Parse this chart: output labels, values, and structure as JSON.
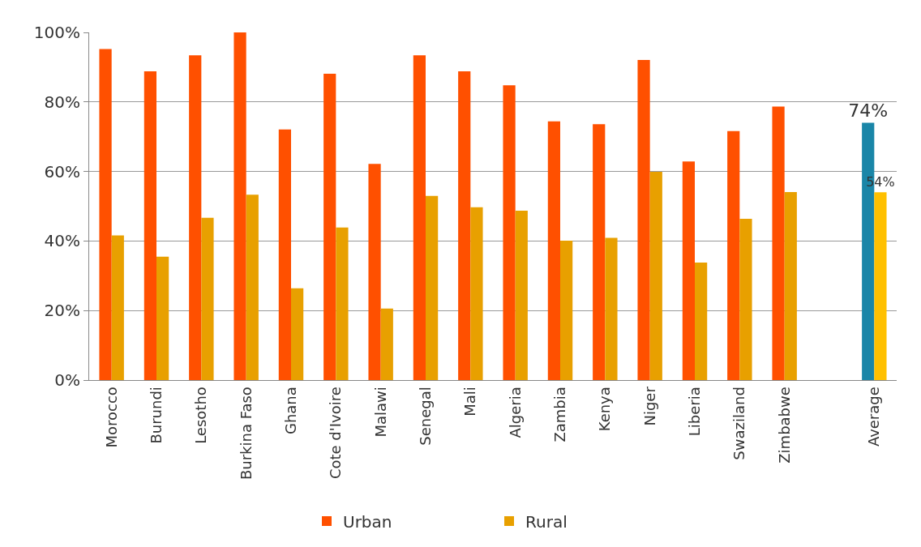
{
  "chart_data": {
    "type": "bar",
    "categories": [
      "Morocco",
      "Burundi",
      "Lesotho",
      "Burkina Faso",
      "Ghana",
      "Cote d'Ivoire",
      "Malawi",
      "Senegal",
      "Mali",
      "Algeria",
      "Zambia",
      "Kenya",
      "Niger",
      "Liberia",
      "Swaziland",
      "Zimbabwe",
      null,
      "Average"
    ],
    "series": [
      {
        "name": "Urban",
        "color": "#ff5000",
        "colors": [
          null,
          null,
          null,
          null,
          null,
          null,
          null,
          null,
          null,
          null,
          null,
          null,
          null,
          null,
          null,
          null,
          null,
          "#1a86a8"
        ],
        "values": [
          95.2,
          88.8,
          93.4,
          100,
          72.1,
          88.1,
          62.2,
          93.4,
          88.8,
          84.8,
          74.4,
          73.6,
          92.1,
          62.9,
          71.6,
          78.7,
          null,
          74
        ],
        "value_labels": [
          null,
          null,
          null,
          null,
          null,
          null,
          null,
          null,
          null,
          null,
          null,
          null,
          null,
          null,
          null,
          null,
          null,
          "74%"
        ]
      },
      {
        "name": "Rural",
        "color": "#e8a000",
        "colors": [
          null,
          null,
          null,
          null,
          null,
          null,
          null,
          null,
          null,
          null,
          null,
          null,
          null,
          null,
          null,
          null,
          null,
          "#ffc000"
        ],
        "values": [
          41.6,
          35.5,
          46.7,
          53.3,
          26.4,
          43.9,
          20.6,
          53.0,
          49.7,
          48.7,
          40.1,
          40.9,
          59.9,
          33.8,
          46.4,
          54.1,
          null,
          54
        ],
        "value_labels": [
          null,
          null,
          null,
          null,
          null,
          null,
          null,
          null,
          null,
          null,
          null,
          null,
          null,
          null,
          null,
          null,
          null,
          "54%"
        ]
      }
    ],
    "ylim": [
      0,
      100
    ],
    "yticks": [
      {
        "value": 0,
        "label": "0%"
      },
      {
        "value": 20,
        "label": "20%"
      },
      {
        "value": 40,
        "label": "40%"
      },
      {
        "value": 60,
        "label": "60%"
      },
      {
        "value": 80,
        "label": "80%"
      },
      {
        "value": 100,
        "label": "100%"
      }
    ],
    "grid": "y",
    "legend": "bottom"
  }
}
